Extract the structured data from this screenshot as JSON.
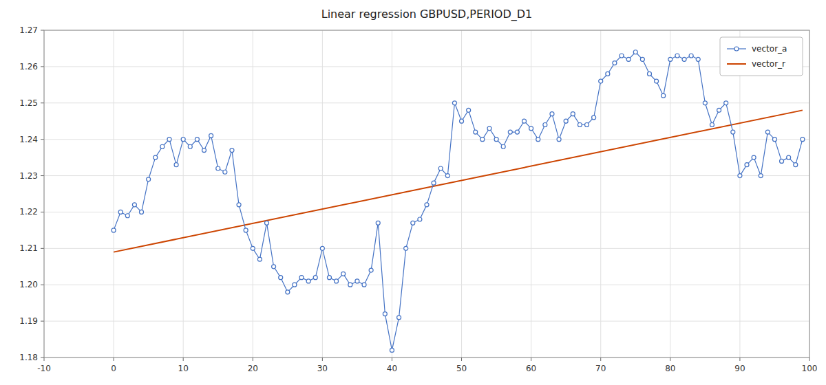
{
  "chart_data": {
    "type": "line",
    "title": "Linear regression GBPUSD,PERIOD_D1",
    "xlim": [
      -10,
      100
    ],
    "ylim": [
      1.18,
      1.27
    ],
    "xticks": [
      -10,
      0,
      10,
      20,
      30,
      40,
      50,
      60,
      70,
      80,
      90,
      100
    ],
    "yticks": [
      1.18,
      1.19,
      {
        "value": 1.2,
        "label": "1.20"
      },
      1.21,
      1.22,
      1.23,
      1.24,
      1.25,
      1.26,
      1.27
    ],
    "grid": true,
    "legend": "upper right",
    "series": [
      {
        "name": "vector_a",
        "color": "#4472C4",
        "marker": "circle",
        "x": [
          0,
          1,
          2,
          3,
          4,
          5,
          6,
          7,
          8,
          9,
          10,
          11,
          12,
          13,
          14,
          15,
          16,
          17,
          18,
          19,
          20,
          21,
          22,
          23,
          24,
          25,
          26,
          27,
          28,
          29,
          30,
          31,
          32,
          33,
          34,
          35,
          36,
          37,
          38,
          39,
          40,
          41,
          42,
          43,
          44,
          45,
          46,
          47,
          48,
          49,
          50,
          51,
          52,
          53,
          54,
          55,
          56,
          57,
          58,
          59,
          60,
          61,
          62,
          63,
          64,
          65,
          66,
          67,
          68,
          69,
          70,
          71,
          72,
          73,
          74,
          75,
          76,
          77,
          78,
          79,
          80,
          81,
          82,
          83,
          84,
          85,
          86,
          87,
          88,
          89,
          90,
          91,
          92,
          93,
          94,
          95,
          96,
          97,
          98,
          99
        ],
        "values": [
          1.215,
          1.22,
          1.219,
          1.222,
          1.22,
          1.229,
          1.235,
          1.238,
          1.24,
          1.233,
          1.24,
          1.238,
          1.24,
          1.237,
          1.241,
          1.232,
          1.231,
          1.237,
          1.222,
          1.215,
          1.21,
          1.207,
          1.217,
          1.205,
          1.202,
          1.198,
          1.2,
          1.202,
          1.201,
          1.202,
          1.21,
          1.202,
          1.201,
          1.203,
          1.2,
          1.201,
          1.2,
          1.204,
          1.217,
          1.192,
          1.182,
          1.191,
          1.21,
          1.217,
          1.218,
          1.222,
          1.228,
          1.232,
          1.23,
          1.25,
          1.245,
          1.248,
          1.242,
          1.24,
          1.243,
          1.24,
          1.238,
          1.242,
          1.242,
          1.245,
          1.243,
          1.24,
          1.244,
          1.247,
          1.24,
          1.245,
          1.247,
          1.244,
          1.244,
          1.246,
          1.256,
          1.258,
          1.261,
          1.263,
          1.262,
          1.264,
          1.262,
          1.258,
          1.256,
          1.252,
          1.262,
          1.263,
          1.262,
          1.263,
          1.262,
          1.25,
          1.244,
          1.248,
          1.25,
          1.242,
          1.23,
          1.233,
          1.235,
          1.23,
          1.242,
          1.24,
          1.234,
          1.235,
          1.233,
          1.24
        ]
      },
      {
        "name": "vector_r",
        "color": "#CC4400",
        "x": [
          0,
          99
        ],
        "values": [
          1.209,
          1.248
        ]
      }
    ]
  }
}
